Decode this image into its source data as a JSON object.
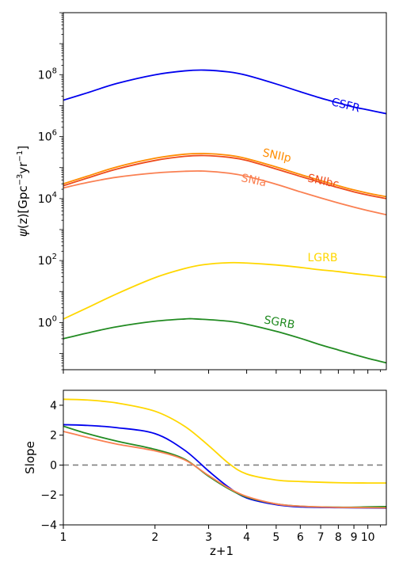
{
  "chart_data": [
    {
      "type": "line",
      "title": "",
      "xlabel": "",
      "ylabel_psi": "ψ",
      "ylabel_rest": "(z)[Gpc",
      "ylabel_exp1": "−3",
      "ylabel_yr": "yr",
      "ylabel_exp2": "−1",
      "ylabel_close": "]",
      "xscale": "log",
      "yscale": "log",
      "xlim": [
        1,
        11.5
      ],
      "ylim": [
        0.03,
        10000000000.0
      ],
      "yticks": [
        {
          "value": 1,
          "base": "10",
          "exp": "0"
        },
        {
          "value": 100,
          "base": "10",
          "exp": "2"
        },
        {
          "value": 10000,
          "base": "10",
          "exp": "4"
        },
        {
          "value": 1000000,
          "base": "10",
          "exp": "6"
        },
        {
          "value": 100000000,
          "base": "10",
          "exp": "8"
        }
      ],
      "series": [
        {
          "name": "CSFR",
          "color": "#0000ee",
          "label_x": 8.4,
          "label_y": 8000000.0,
          "label_angle": 14,
          "x": [
            1,
            1.2,
            1.5,
            2,
            2.5,
            2.9,
            3.5,
            4,
            5,
            6,
            7,
            8,
            9,
            10,
            11.5
          ],
          "y": [
            15000000.0,
            26000000.0,
            52000000.0,
            99000000.0,
            132000000.0,
            140000000.0,
            122000000.0,
            95000000.0,
            50000000.0,
            28000000.0,
            17500000.0,
            12200000.0,
            9000000.0,
            7300000.0,
            5500000.0
          ]
        },
        {
          "name": "SNIIp",
          "color": "#ff8c00",
          "label_x": 5.0,
          "label_y": 190000.0,
          "label_angle": 12,
          "x": [
            1,
            1.2,
            1.5,
            2,
            2.5,
            2.9,
            3.5,
            4,
            5,
            6,
            7,
            8,
            9,
            10,
            11.5
          ],
          "y": [
            30000.0,
            53000.0,
            105000.0,
            200000.0,
            270000.0,
            285000.0,
            250000.0,
            195000.0,
            105000.0,
            60000.0,
            38000.0,
            26000.0,
            19000.0,
            15000.0,
            11500.0
          ]
        },
        {
          "name": "SNIbc",
          "color": "#ee4b1c",
          "label_x": 7.1,
          "label_y": 28000.0,
          "label_angle": 12,
          "x": [
            1,
            1.2,
            1.5,
            2,
            2.5,
            2.9,
            3.5,
            4,
            5,
            6,
            7,
            8,
            9,
            10,
            11.5
          ],
          "y": [
            26000.0,
            46000.0,
            90000.0,
            170000.0,
            230000.0,
            245000.0,
            215000.0,
            170000.0,
            90000.0,
            52000.0,
            33000.0,
            22500.0,
            16500.0,
            13000.0,
            10000.0
          ]
        },
        {
          "name": "SNIa",
          "color": "#fa8052",
          "label_x": 4.2,
          "label_y": 30000.0,
          "label_angle": 12,
          "x": [
            1,
            1.2,
            1.5,
            2,
            2.5,
            2.9,
            3.5,
            4,
            5,
            6,
            7,
            8,
            9,
            10,
            11.5
          ],
          "y": [
            22000.0,
            33000.0,
            49000.0,
            67000.0,
            76000.0,
            77000.0,
            66000.0,
            52000.0,
            29000.0,
            16500.0,
            10500.0,
            7200.0,
            5300.0,
            4100.0,
            3000.0
          ]
        },
        {
          "name": "LGRB",
          "color": "#ffd700",
          "label_x": 7.1,
          "label_y": 95,
          "label_angle": 0,
          "x": [
            1,
            1.2,
            1.5,
            2,
            2.5,
            2.9,
            3.5,
            4,
            5,
            6,
            7,
            8,
            9,
            10,
            11.5
          ],
          "y": [
            1.3,
            3.0,
            8.5,
            28,
            55,
            74,
            85,
            83,
            72,
            60,
            50,
            44,
            38,
            34,
            29
          ]
        },
        {
          "name": "SGRB",
          "color": "#228b22",
          "label_x": 5.1,
          "label_y": 0.78,
          "label_angle": 10,
          "x": [
            1,
            1.2,
            1.5,
            2,
            2.5,
            2.7,
            3.5,
            4,
            5,
            6,
            7,
            8,
            9,
            10,
            11.5
          ],
          "y": [
            0.3,
            0.46,
            0.73,
            1.1,
            1.3,
            1.31,
            1.1,
            0.88,
            0.52,
            0.31,
            0.19,
            0.13,
            0.093,
            0.07,
            0.05
          ]
        }
      ]
    },
    {
      "type": "line",
      "title": "",
      "xlabel": "z+1",
      "ylabel": "Slope",
      "xscale": "log",
      "xlim": [
        1,
        11.5
      ],
      "ylim": [
        -4,
        5
      ],
      "yticks": [
        -4,
        -2,
        0,
        2,
        4
      ],
      "xticks": [
        {
          "value": 1,
          "label": "1"
        },
        {
          "value": 2,
          "label": "2"
        },
        {
          "value": 3,
          "label": "3"
        },
        {
          "value": 4,
          "label": "4"
        },
        {
          "value": 5,
          "label": "5"
        },
        {
          "value": 6,
          "label": "6"
        },
        {
          "value": 7,
          "label": "7"
        },
        {
          "value": 8,
          "label": "8"
        },
        {
          "value": 9,
          "label": "9"
        },
        {
          "value": 10,
          "label": "10"
        }
      ],
      "reference_line": {
        "y": 0,
        "style": "dashed",
        "color": "#808080"
      },
      "series": [
        {
          "color": "#ffd700",
          "x": [
            1,
            1.2,
            1.5,
            2,
            2.5,
            3,
            3.5,
            4,
            5,
            6,
            8,
            10,
            11.5
          ],
          "y": [
            4.4,
            4.35,
            4.15,
            3.6,
            2.6,
            1.3,
            0.1,
            -0.6,
            -1.0,
            -1.1,
            -1.18,
            -1.2,
            -1.2
          ]
        },
        {
          "color": "#0000ee",
          "x": [
            1,
            1.2,
            1.5,
            2,
            2.5,
            3,
            3.5,
            4,
            5,
            6,
            8,
            10,
            11.5
          ],
          "y": [
            2.7,
            2.65,
            2.5,
            2.1,
            1.0,
            -0.4,
            -1.5,
            -2.2,
            -2.65,
            -2.8,
            -2.85,
            -2.87,
            -2.88
          ]
        },
        {
          "color": "#228b22",
          "x": [
            1,
            1.2,
            1.5,
            2,
            2.5,
            3,
            3.5,
            4,
            5,
            6,
            8,
            10,
            11.5
          ],
          "y": [
            2.6,
            2.1,
            1.6,
            1.05,
            0.4,
            -0.75,
            -1.6,
            -2.15,
            -2.6,
            -2.75,
            -2.82,
            -2.8,
            -2.78
          ]
        },
        {
          "color": "#fa8052",
          "x": [
            1,
            1.2,
            1.5,
            2,
            2.5,
            3,
            3.5,
            4,
            5,
            6,
            8,
            10,
            11.5
          ],
          "y": [
            2.25,
            1.85,
            1.4,
            0.95,
            0.35,
            -0.7,
            -1.55,
            -2.1,
            -2.6,
            -2.75,
            -2.83,
            -2.85,
            -2.86
          ]
        }
      ]
    }
  ]
}
